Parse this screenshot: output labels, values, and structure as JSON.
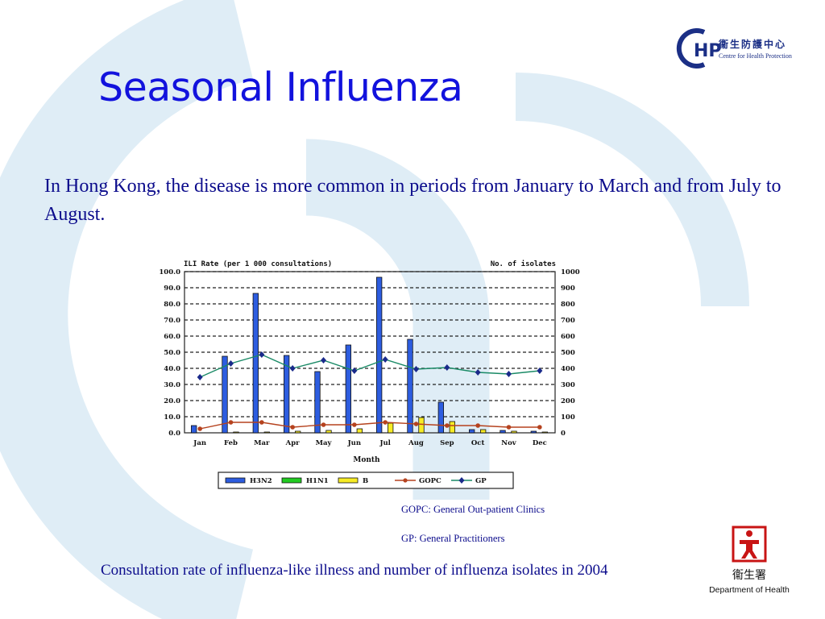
{
  "slide": {
    "title": "Seasonal Influenza",
    "body": "In Hong Kong, the disease is more common in periods from January to March and from July to August.",
    "notes": [
      "GOPC: General Out-patient Clinics",
      "GP: General Practitioners"
    ],
    "caption": "Consultation rate of influenza-like illness and number of influenza isolates in 2004"
  },
  "logos": {
    "chp": {
      "mark": "HP",
      "chinese": "衞生防護中心",
      "english": "Centre for Health Protection"
    },
    "doh": {
      "chinese": "衞生署",
      "english": "Department of Health"
    }
  },
  "colors": {
    "title": "#1212dd",
    "text": "#0c0c8c",
    "h3n2": "#2d5de0",
    "h1n1": "#22cc22",
    "b": "#f7ec25",
    "gopc": "#b5421e",
    "gp": "#1a8a66",
    "gp_marker": "#1a2a8a",
    "watermark": "#dfedf6"
  },
  "chart_data": {
    "type": "bar",
    "left_axis_title": "ILI Rate  (per 1 000 consultations)",
    "right_axis_title": "No. of isolates",
    "xlabel": "Month",
    "categories": [
      "Jan",
      "Feb",
      "Mar",
      "Apr",
      "May",
      "Jun",
      "Jul",
      "Aug",
      "Sep",
      "Oct",
      "Nov",
      "Dec"
    ],
    "ylim": [
      0,
      100
    ],
    "y2lim": [
      0,
      1000
    ],
    "yticks": [
      "0.0",
      "10.0",
      "20.0",
      "30.0",
      "40.0",
      "50.0",
      "60.0",
      "70.0",
      "80.0",
      "90.0",
      "100.0"
    ],
    "y2ticks": [
      "0",
      "100",
      "200",
      "300",
      "400",
      "500",
      "600",
      "700",
      "800",
      "900",
      "1000"
    ],
    "grid": true,
    "bar_series": [
      {
        "name": "H3N2",
        "axis": "right",
        "values": [
          45,
          475,
          865,
          480,
          380,
          545,
          965,
          580,
          190,
          20,
          15,
          10
        ]
      },
      {
        "name": "H1N1",
        "axis": "right",
        "values": [
          0,
          0,
          0,
          0,
          0,
          0,
          0,
          0,
          0,
          0,
          0,
          0
        ]
      },
      {
        "name": "B",
        "axis": "right",
        "values": [
          0,
          5,
          5,
          10,
          15,
          25,
          60,
          95,
          70,
          20,
          10,
          5
        ]
      }
    ],
    "line_series": [
      {
        "name": "GOPC",
        "axis": "left",
        "values": [
          2.5,
          6.5,
          6.5,
          3.5,
          5.0,
          5.0,
          6.5,
          5.5,
          4.5,
          4.5,
          3.5,
          3.5
        ]
      },
      {
        "name": "GP",
        "axis": "left",
        "values": [
          34.5,
          43.0,
          48.5,
          40.0,
          45.0,
          38.5,
          45.5,
          39.5,
          40.5,
          37.5,
          36.5,
          38.5
        ]
      }
    ],
    "legend_position": "bottom"
  }
}
